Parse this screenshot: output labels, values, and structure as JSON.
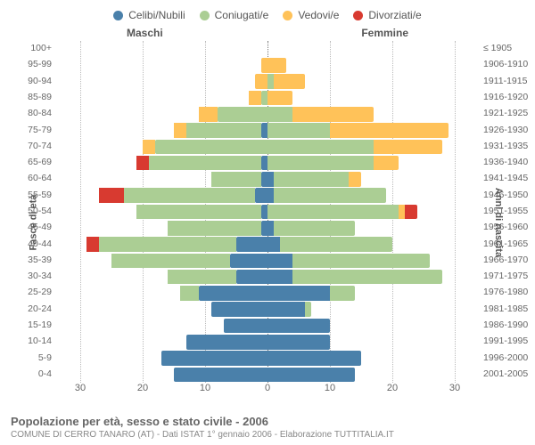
{
  "legend": [
    {
      "label": "Celibi/Nubili",
      "color": "#4a80aa"
    },
    {
      "label": "Coniugati/e",
      "color": "#abce94"
    },
    {
      "label": "Vedovi/e",
      "color": "#ffc259"
    },
    {
      "label": "Divorziati/e",
      "color": "#d83a30"
    }
  ],
  "gender_left": "Maschi",
  "gender_right": "Femmine",
  "y_left_title": "Fasce di età",
  "y_right_title": "Anni di nascita",
  "age_labels": [
    "100+",
    "95-99",
    "90-94",
    "85-89",
    "80-84",
    "75-79",
    "70-74",
    "65-69",
    "60-64",
    "55-59",
    "50-54",
    "45-49",
    "40-44",
    "35-39",
    "30-34",
    "25-29",
    "20-24",
    "15-19",
    "10-14",
    "5-9",
    "0-4"
  ],
  "birth_labels": [
    "≤ 1905",
    "1906-1910",
    "1911-1915",
    "1916-1920",
    "1921-1925",
    "1926-1930",
    "1931-1935",
    "1936-1940",
    "1941-1945",
    "1946-1950",
    "1951-1955",
    "1956-1960",
    "1961-1965",
    "1966-1970",
    "1971-1975",
    "1976-1980",
    "1981-1985",
    "1986-1990",
    "1991-1995",
    "1996-2000",
    "2001-2005"
  ],
  "x_ticks": [
    30,
    20,
    10,
    0,
    10,
    20,
    30
  ],
  "x_max": 34,
  "colors": {
    "celibi": "#4a80aa",
    "coniugati": "#abce94",
    "vedovi": "#ffc259",
    "divorziati": "#d83a30",
    "grid": "#bbbbbb",
    "center": "#777777",
    "bg": "#ffffff",
    "text": "#555555"
  },
  "data": [
    {
      "m": [
        0,
        0,
        0,
        0
      ],
      "f": [
        0,
        0,
        0,
        0
      ]
    },
    {
      "m": [
        0,
        0,
        1,
        0
      ],
      "f": [
        0,
        0,
        3,
        0
      ]
    },
    {
      "m": [
        0,
        0,
        2,
        0
      ],
      "f": [
        0,
        1,
        5,
        0
      ]
    },
    {
      "m": [
        0,
        1,
        2,
        0
      ],
      "f": [
        0,
        0,
        4,
        0
      ]
    },
    {
      "m": [
        0,
        8,
        3,
        0
      ],
      "f": [
        0,
        4,
        13,
        0
      ]
    },
    {
      "m": [
        1,
        12,
        2,
        0
      ],
      "f": [
        0,
        10,
        19,
        0
      ]
    },
    {
      "m": [
        0,
        18,
        2,
        0
      ],
      "f": [
        0,
        17,
        11,
        0
      ]
    },
    {
      "m": [
        1,
        18,
        0,
        2
      ],
      "f": [
        0,
        17,
        4,
        0
      ]
    },
    {
      "m": [
        1,
        8,
        0,
        0
      ],
      "f": [
        1,
        12,
        2,
        0
      ]
    },
    {
      "m": [
        2,
        21,
        0,
        4
      ],
      "f": [
        1,
        18,
        0,
        0
      ]
    },
    {
      "m": [
        1,
        20,
        0,
        0
      ],
      "f": [
        0,
        21,
        1,
        2
      ]
    },
    {
      "m": [
        1,
        15,
        0,
        0
      ],
      "f": [
        1,
        13,
        0,
        0
      ]
    },
    {
      "m": [
        5,
        22,
        0,
        2
      ],
      "f": [
        2,
        18,
        0,
        0
      ]
    },
    {
      "m": [
        6,
        19,
        0,
        0
      ],
      "f": [
        4,
        22,
        0,
        0
      ]
    },
    {
      "m": [
        5,
        11,
        0,
        0
      ],
      "f": [
        4,
        24,
        0,
        0
      ]
    },
    {
      "m": [
        11,
        3,
        0,
        0
      ],
      "f": [
        10,
        4,
        0,
        0
      ]
    },
    {
      "m": [
        9,
        0,
        0,
        0
      ],
      "f": [
        6,
        1,
        0,
        0
      ]
    },
    {
      "m": [
        7,
        0,
        0,
        0
      ],
      "f": [
        10,
        0,
        0,
        0
      ]
    },
    {
      "m": [
        13,
        0,
        0,
        0
      ],
      "f": [
        10,
        0,
        0,
        0
      ]
    },
    {
      "m": [
        17,
        0,
        0,
        0
      ],
      "f": [
        15,
        0,
        0,
        0
      ]
    },
    {
      "m": [
        15,
        0,
        0,
        0
      ],
      "f": [
        14,
        0,
        0,
        0
      ]
    }
  ],
  "row_gap_ratio": 0.1,
  "footer_title": "Popolazione per età, sesso e stato civile - 2006",
  "footer_sub": "COMUNE DI CERRO TANARO (AT) - Dati ISTAT 1° gennaio 2006 - Elaborazione TUTTITALIA.IT"
}
